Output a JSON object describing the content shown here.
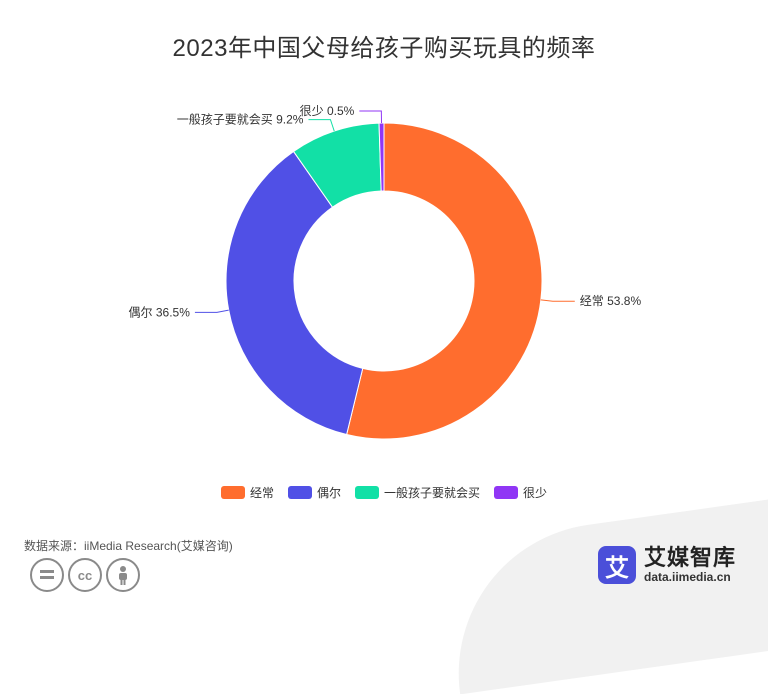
{
  "chart_data": {
    "type": "pie",
    "title": "2023年中国父母给孩子购买玩具的频率",
    "categories": [
      "经常",
      "偶尔",
      "一般孩子要就会买",
      "很少"
    ],
    "values": [
      53.8,
      36.5,
      9.2,
      0.5
    ],
    "labels": [
      "经常 53.8%",
      "偶尔 36.5%",
      "一般孩子要就会买 9.2%",
      "很少 0.5%"
    ],
    "colors": [
      "#ff6d2e",
      "#5050e6",
      "#12e0a6",
      "#9036f5"
    ],
    "donut": true,
    "legend_position": "bottom"
  },
  "source": "数据来源：iiMedia Research(艾媒咨询)",
  "license_icons": [
    "equals-icon",
    "cc-icon",
    "person-icon"
  ],
  "brand": {
    "logo_char": "艾",
    "name": "艾媒智库",
    "url": "data.iimedia.cn"
  }
}
